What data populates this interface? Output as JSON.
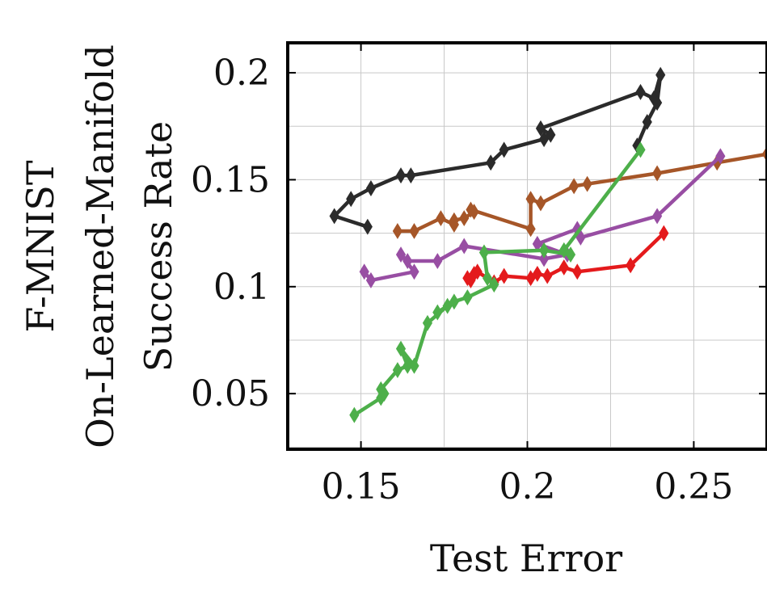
{
  "figure": {
    "row_title_line1": "F-MNIST",
    "row_title_line2": "On-Learned-Manifold"
  },
  "chart_data": {
    "type": "line",
    "xlabel": "Test Error",
    "ylabel": "Success Rate",
    "xlim": [
      0.128,
      0.272
    ],
    "ylim": [
      0.024,
      0.214
    ],
    "xticks": [
      0.15,
      0.2,
      0.25
    ],
    "yticks": [
      0.05,
      0.1,
      0.15,
      0.2
    ],
    "xtick_labels": [
      "0.15",
      "0.2",
      "0.25"
    ],
    "ytick_labels": [
      "0.05",
      "0.1",
      "0.15",
      "0.2"
    ],
    "grid": true,
    "marker": "diamond",
    "series": [
      {
        "color": "#2b2b2b",
        "x": [
          0.152,
          0.142,
          0.147,
          0.153,
          0.162,
          0.165,
          0.189,
          0.193,
          0.205,
          0.207,
          0.204,
          0.234,
          0.238,
          0.24,
          0.239,
          0.236,
          0.233
        ],
        "y": [
          0.128,
          0.133,
          0.141,
          0.146,
          0.152,
          0.152,
          0.158,
          0.164,
          0.169,
          0.171,
          0.174,
          0.191,
          0.188,
          0.199,
          0.186,
          0.177,
          0.166
        ]
      },
      {
        "color": "#a65628",
        "x": [
          0.161,
          0.166,
          0.174,
          0.178,
          0.178,
          0.181,
          0.184,
          0.183,
          0.201,
          0.201,
          0.204,
          0.214,
          0.218,
          0.239,
          0.257,
          0.272
        ],
        "y": [
          0.126,
          0.126,
          0.132,
          0.129,
          0.131,
          0.132,
          0.135,
          0.136,
          0.127,
          0.141,
          0.139,
          0.147,
          0.148,
          0.153,
          0.158,
          0.162
        ]
      },
      {
        "color": "#984ea3",
        "x": [
          0.151,
          0.153,
          0.166,
          0.162,
          0.164,
          0.173,
          0.181,
          0.205,
          0.212,
          0.203,
          0.215,
          0.216,
          0.239,
          0.258
        ],
        "y": [
          0.107,
          0.103,
          0.107,
          0.115,
          0.112,
          0.112,
          0.119,
          0.113,
          0.115,
          0.12,
          0.127,
          0.123,
          0.133,
          0.161
        ]
      },
      {
        "color": "#e41a1c",
        "x": [
          0.182,
          0.184,
          0.183,
          0.185,
          0.19,
          0.193,
          0.201,
          0.203,
          0.206,
          0.211,
          0.215,
          0.231,
          0.241
        ],
        "y": [
          0.104,
          0.106,
          0.103,
          0.107,
          0.102,
          0.105,
          0.104,
          0.106,
          0.105,
          0.109,
          0.107,
          0.11,
          0.125
        ]
      },
      {
        "color": "#4daf4a",
        "x": [
          0.148,
          0.156,
          0.157,
          0.156,
          0.161,
          0.164,
          0.162,
          0.166,
          0.17,
          0.176,
          0.173,
          0.178,
          0.182,
          0.19,
          0.188,
          0.187,
          0.205,
          0.213,
          0.211,
          0.234
        ],
        "y": [
          0.04,
          0.048,
          0.05,
          0.052,
          0.061,
          0.063,
          0.071,
          0.063,
          0.083,
          0.091,
          0.088,
          0.093,
          0.095,
          0.101,
          0.104,
          0.116,
          0.117,
          0.115,
          0.117,
          0.164
        ]
      }
    ]
  }
}
